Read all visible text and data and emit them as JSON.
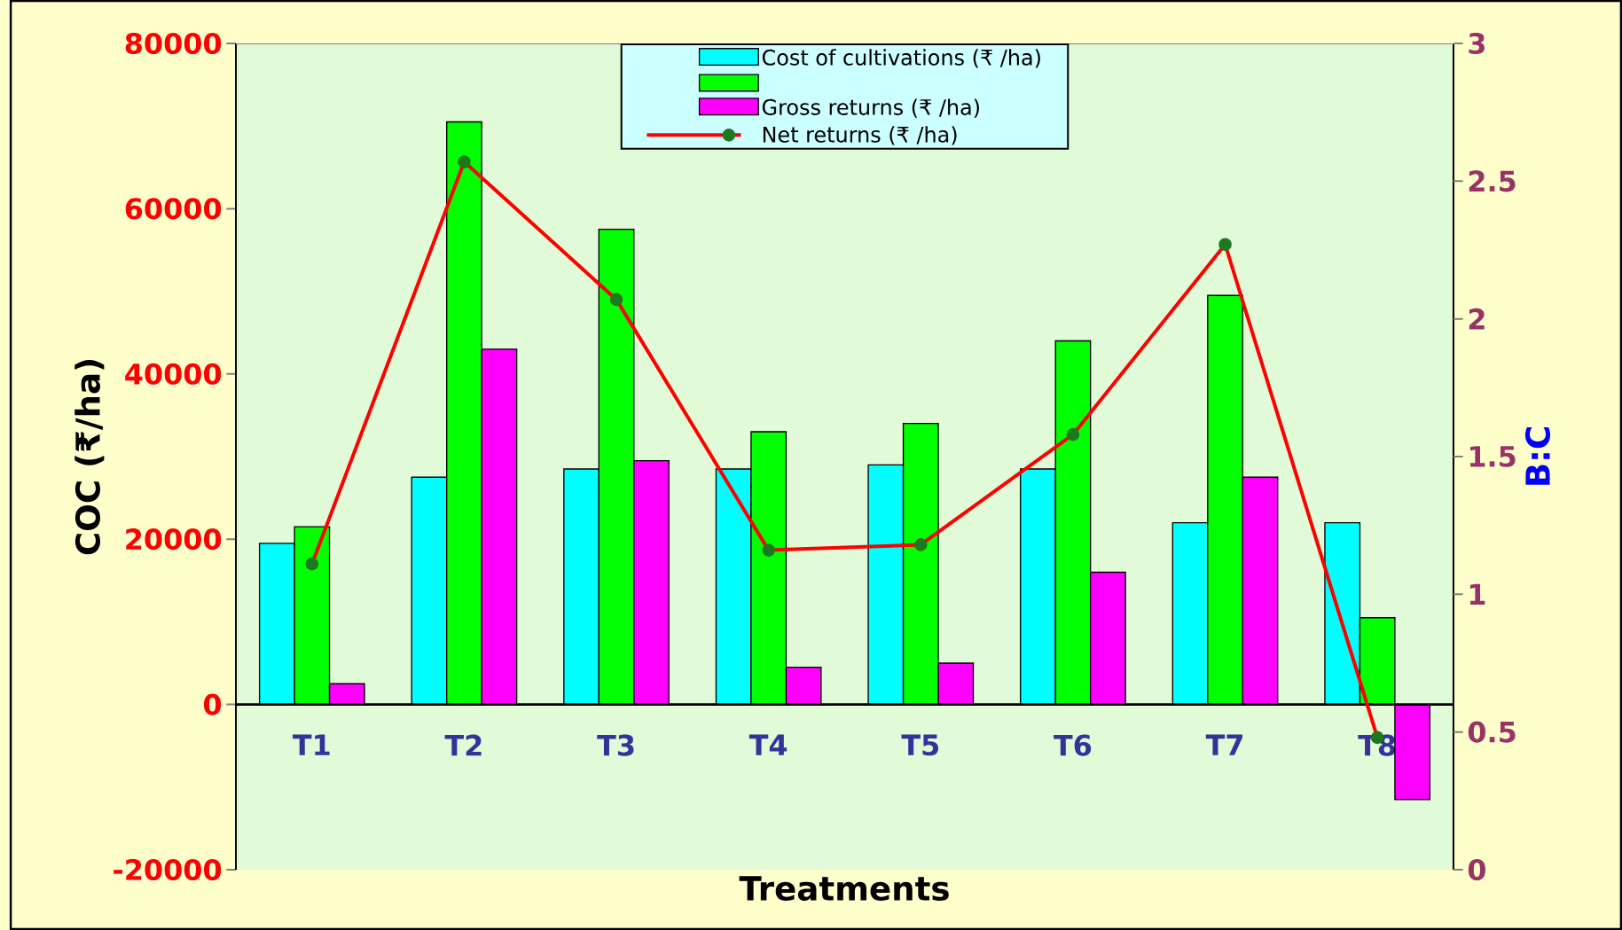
{
  "chart_data": {
    "type": "bar",
    "xlabel": "Treatments",
    "ylabel": "COC (₹/ha)",
    "y2label": "B:C",
    "categories": [
      "T1",
      "T2",
      "T3",
      "T4",
      "T5",
      "T6",
      "T7",
      "T8"
    ],
    "series": [
      {
        "name": "Cost of cultivations (₹ /ha)",
        "color": "#00ffff",
        "values": [
          19500,
          27500,
          28500,
          28500,
          29000,
          28500,
          22000,
          22000
        ]
      },
      {
        "color": "#00ff00",
        "values": [
          21500,
          70500,
          57500,
          33000,
          34000,
          44000,
          49500,
          10500
        ]
      },
      {
        "name": "Gross returns (₹ /ha)",
        "color": "#ff00ff",
        "values": [
          2500,
          43000,
          29500,
          4500,
          5000,
          16000,
          27500,
          -11500
        ]
      },
      {
        "name": "Net returns (₹ /ha)",
        "type": "line",
        "axis": "y2",
        "color": "#ff0000",
        "values": [
          1.11,
          2.57,
          2.07,
          1.16,
          1.18,
          1.58,
          2.27,
          0.48
        ]
      }
    ],
    "ylim": [
      -20000,
      80000
    ],
    "yticks": [
      -20000,
      0,
      20000,
      40000,
      60000,
      80000
    ],
    "y2lim": [
      0,
      3
    ],
    "y2ticks": [
      0,
      0.5,
      1,
      1.5,
      2,
      2.5,
      3
    ],
    "legend": "top",
    "marker": "circle",
    "line_style": "solid",
    "grid": false
  }
}
